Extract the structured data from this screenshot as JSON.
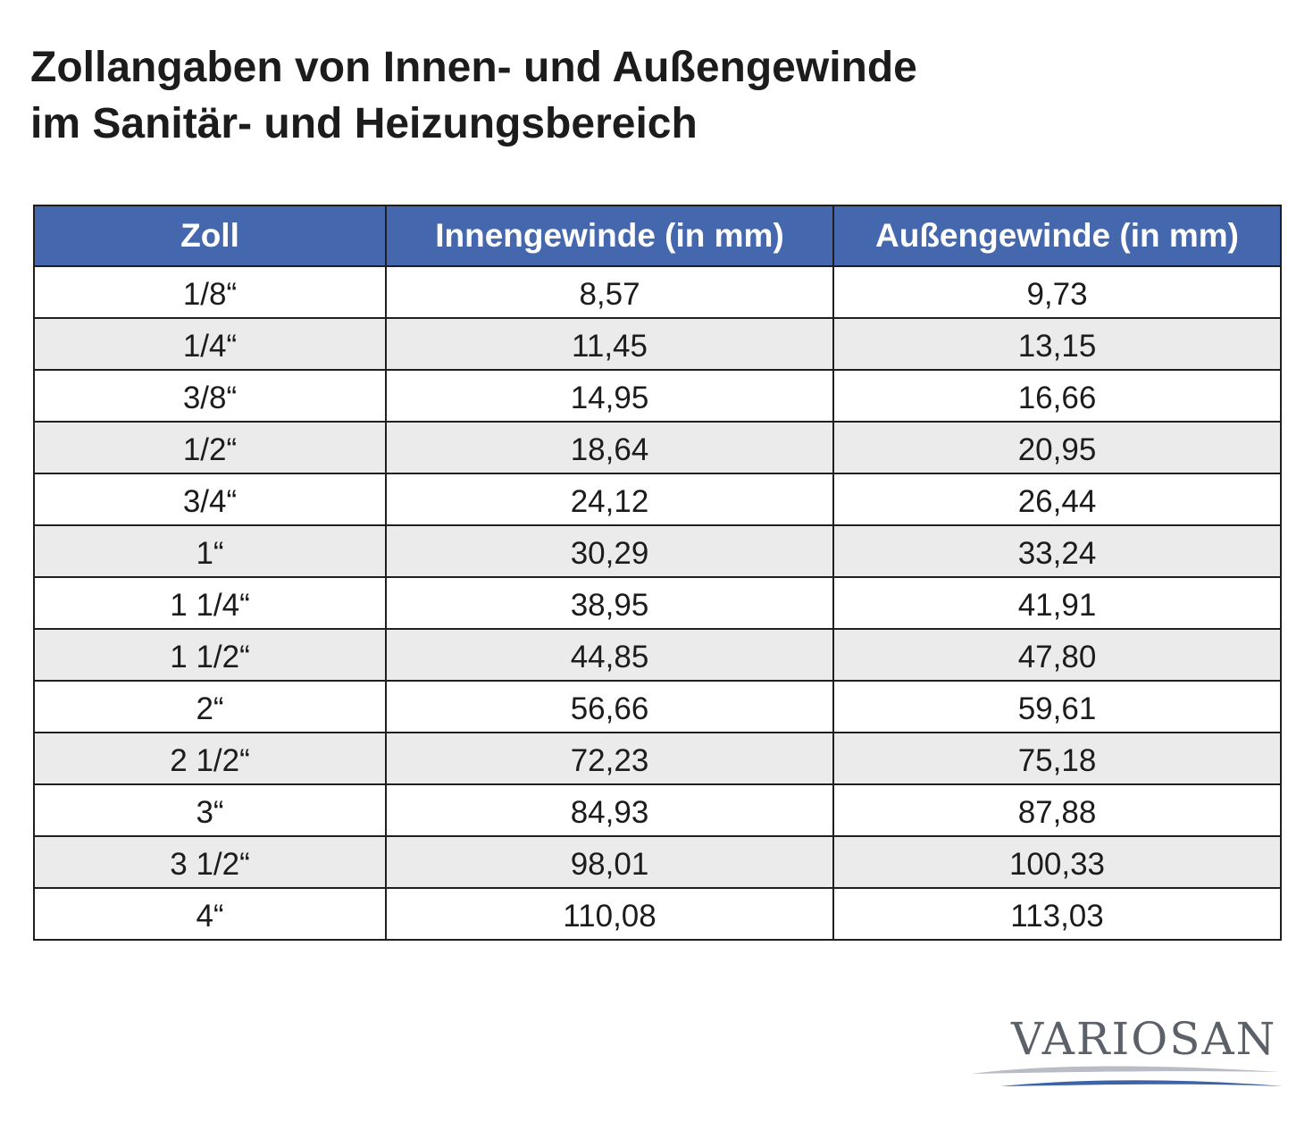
{
  "title": {
    "line1": "Zollangaben von Innen- und Außengewinde",
    "line2": "im Sanitär- und Heizungsbereich"
  },
  "table": {
    "headers": [
      "Zoll",
      "Innengewinde (in mm)",
      "Außengewinde (in mm)"
    ],
    "rows": [
      [
        "1/8“",
        "8,57",
        "9,73"
      ],
      [
        "1/4“",
        "11,45",
        "13,15"
      ],
      [
        "3/8“",
        "14,95",
        "16,66"
      ],
      [
        "1/2“",
        "18,64",
        "20,95"
      ],
      [
        "3/4“",
        "24,12",
        "26,44"
      ],
      [
        "1“",
        "30,29",
        "33,24"
      ],
      [
        "1 1/4“",
        "38,95",
        "41,91"
      ],
      [
        "1 1/2“",
        "44,85",
        "47,80"
      ],
      [
        "2“",
        "56,66",
        "59,61"
      ],
      [
        "2 1/2“",
        "72,23",
        "75,18"
      ],
      [
        "3“",
        "84,93",
        "87,88"
      ],
      [
        "3 1/2“",
        "98,01",
        "100,33"
      ],
      [
        "4“",
        "110,08",
        "113,03"
      ]
    ]
  },
  "logo": {
    "text": "VARIOSAN"
  },
  "colors": {
    "header_bg": "#4467ae",
    "header_text": "#ffffff",
    "row_alt": "#ebebeb",
    "logo_text": "#5b6069",
    "swoosh_blue": "#3c64a6",
    "swoosh_gray": "#b9bcc2"
  }
}
